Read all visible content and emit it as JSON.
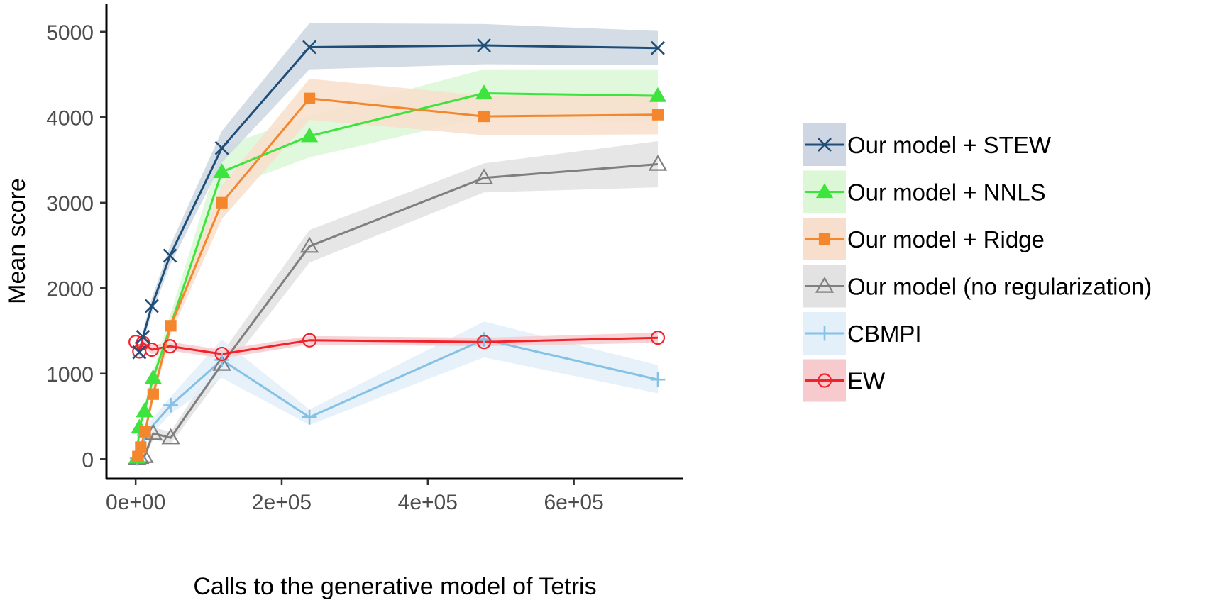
{
  "chart_data": {
    "type": "line",
    "title": "",
    "xlabel": "Calls to the generative model of Tetris",
    "ylabel": "Mean score",
    "xlim": [
      -40000,
      750000
    ],
    "ylim": [
      -230,
      5330
    ],
    "x_ticks": [
      0,
      200000,
      400000,
      600000
    ],
    "x_tick_labels": [
      "0e+00",
      "2e+05",
      "4e+05",
      "6e+05"
    ],
    "y_ticks": [
      0,
      1000,
      2000,
      3000,
      4000,
      5000
    ],
    "y_tick_labels": [
      "0",
      "1000",
      "2000",
      "3000",
      "4000",
      "5000"
    ],
    "grid": false,
    "legend_position": "right",
    "series": [
      {
        "name": "Our model + STEW",
        "color": "#1f4e79",
        "band_color": "#cdd6e2",
        "marker": "x",
        "points": [
          {
            "x": 5000,
            "y": 1250,
            "lo": 1180,
            "hi": 1320
          },
          {
            "x": 10000,
            "y": 1430,
            "lo": 1350,
            "hi": 1500
          },
          {
            "x": 22000,
            "y": 1790,
            "lo": 1700,
            "hi": 1880
          },
          {
            "x": 47000,
            "y": 2380,
            "lo": 2270,
            "hi": 2490
          },
          {
            "x": 118000,
            "y": 3640,
            "lo": 3470,
            "hi": 3840
          },
          {
            "x": 238000,
            "y": 4820,
            "lo": 4560,
            "hi": 5100
          },
          {
            "x": 477000,
            "y": 4840,
            "lo": 4620,
            "hi": 5090
          },
          {
            "x": 715000,
            "y": 4810,
            "lo": 4610,
            "hi": 5010
          }
        ]
      },
      {
        "name": "Our model + NNLS",
        "color": "#3de43d",
        "band_color": "#dbf7d6",
        "marker": "triangle-filled",
        "points": [
          {
            "x": 2000,
            "y": 20,
            "lo": 0,
            "hi": 60
          },
          {
            "x": 5000,
            "y": 370,
            "lo": 300,
            "hi": 440
          },
          {
            "x": 12000,
            "y": 560,
            "lo": 480,
            "hi": 640
          },
          {
            "x": 24000,
            "y": 950,
            "lo": 860,
            "hi": 1040
          },
          {
            "x": 118000,
            "y": 3360,
            "lo": 3150,
            "hi": 3650
          },
          {
            "x": 238000,
            "y": 3780,
            "lo": 3530,
            "hi": 4020
          },
          {
            "x": 477000,
            "y": 4280,
            "lo": 4000,
            "hi": 4560
          },
          {
            "x": 715000,
            "y": 4250,
            "lo": 3940,
            "hi": 4560
          }
        ]
      },
      {
        "name": "Our model + Ridge",
        "color": "#f4862d",
        "band_color": "#f8dfcd",
        "marker": "square-filled",
        "points": [
          {
            "x": 3000,
            "y": 30,
            "lo": 0,
            "hi": 70
          },
          {
            "x": 7000,
            "y": 140,
            "lo": 90,
            "hi": 190
          },
          {
            "x": 13000,
            "y": 320,
            "lo": 250,
            "hi": 390
          },
          {
            "x": 24000,
            "y": 760,
            "lo": 680,
            "hi": 840
          },
          {
            "x": 48000,
            "y": 1560,
            "lo": 1460,
            "hi": 1660
          },
          {
            "x": 118000,
            "y": 3000,
            "lo": 2810,
            "hi": 3200
          },
          {
            "x": 238000,
            "y": 4220,
            "lo": 3970,
            "hi": 4450
          },
          {
            "x": 477000,
            "y": 4010,
            "lo": 3790,
            "hi": 4250
          },
          {
            "x": 715000,
            "y": 4030,
            "lo": 3800,
            "hi": 4260
          }
        ]
      },
      {
        "name": "Our model (no regularization)",
        "color": "#7f7f7f",
        "band_color": "#e2e2e2",
        "marker": "triangle-open",
        "points": [
          {
            "x": 2000,
            "y": 10,
            "lo": 0,
            "hi": 40
          },
          {
            "x": 6000,
            "y": 20,
            "lo": 0,
            "hi": 60
          },
          {
            "x": 12000,
            "y": 30,
            "lo": 0,
            "hi": 80
          },
          {
            "x": 24000,
            "y": 300,
            "lo": 230,
            "hi": 370
          },
          {
            "x": 48000,
            "y": 250,
            "lo": 180,
            "hi": 320
          },
          {
            "x": 118000,
            "y": 1110,
            "lo": 980,
            "hi": 1240
          },
          {
            "x": 238000,
            "y": 2490,
            "lo": 2300,
            "hi": 2680
          },
          {
            "x": 477000,
            "y": 3290,
            "lo": 3120,
            "hi": 3460
          },
          {
            "x": 715000,
            "y": 3450,
            "lo": 3180,
            "hi": 3720
          }
        ]
      },
      {
        "name": "CBMPI",
        "color": "#85c1e5",
        "band_color": "#e3eff9",
        "marker": "plus",
        "points": [
          {
            "x": 2000,
            "y": 10,
            "lo": 0,
            "hi": 40
          },
          {
            "x": 12000,
            "y": 280,
            "lo": 200,
            "hi": 360
          },
          {
            "x": 48000,
            "y": 630,
            "lo": 530,
            "hi": 730
          },
          {
            "x": 118000,
            "y": 1160,
            "lo": 950,
            "hi": 1400
          },
          {
            "x": 238000,
            "y": 490,
            "lo": 400,
            "hi": 580
          },
          {
            "x": 477000,
            "y": 1400,
            "lo": 1190,
            "hi": 1610
          },
          {
            "x": 715000,
            "y": 930,
            "lo": 770,
            "hi": 1100
          }
        ]
      },
      {
        "name": "EW",
        "color": "#f0232d",
        "band_color": "#f7cbce",
        "marker": "circle-open",
        "points": [
          {
            "x": 0,
            "y": 1370,
            "lo": 1320,
            "hi": 1420
          },
          {
            "x": 5000,
            "y": 1260,
            "lo": 1210,
            "hi": 1310
          },
          {
            "x": 10000,
            "y": 1360,
            "lo": 1310,
            "hi": 1410
          },
          {
            "x": 22000,
            "y": 1280,
            "lo": 1230,
            "hi": 1330
          },
          {
            "x": 47000,
            "y": 1320,
            "lo": 1270,
            "hi": 1370
          },
          {
            "x": 118000,
            "y": 1230,
            "lo": 1180,
            "hi": 1280
          },
          {
            "x": 238000,
            "y": 1390,
            "lo": 1340,
            "hi": 1440
          },
          {
            "x": 477000,
            "y": 1370,
            "lo": 1320,
            "hi": 1420
          },
          {
            "x": 715000,
            "y": 1420,
            "lo": 1360,
            "hi": 1480
          }
        ]
      }
    ]
  }
}
